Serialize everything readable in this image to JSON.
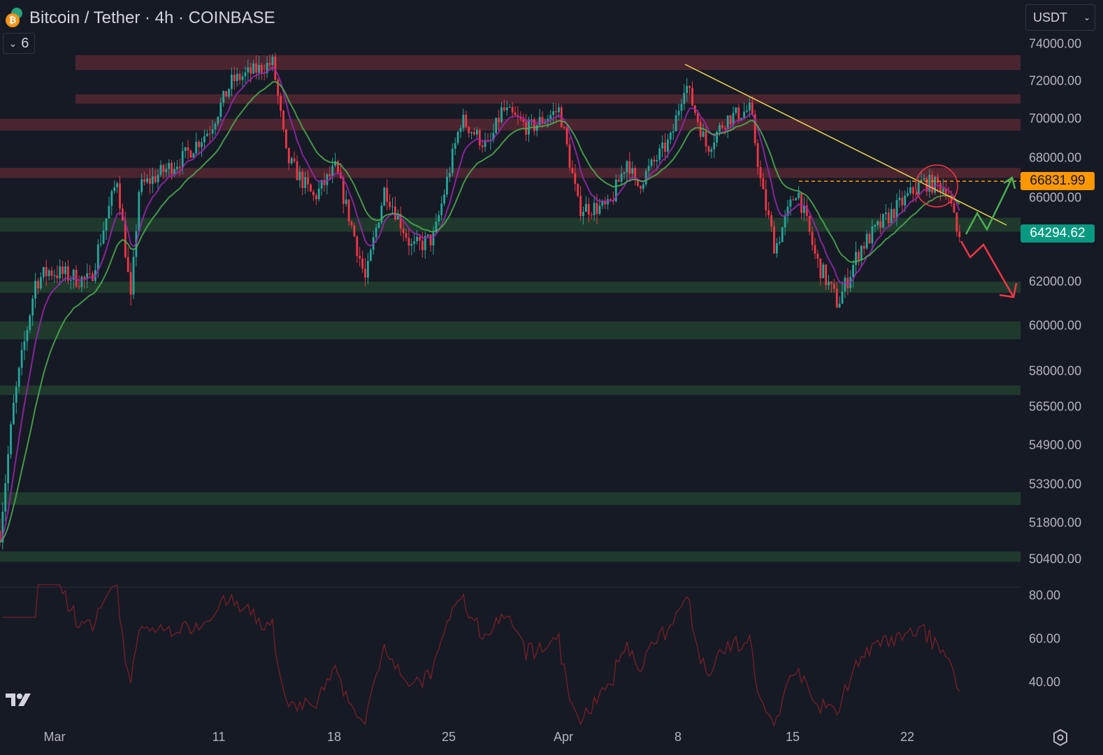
{
  "header": {
    "title": "Bitcoin / Tether · 4h · COINBASE",
    "indicators_toggle_count": "6",
    "currency_select": "USDT"
  },
  "colors": {
    "background": "#161a25",
    "up": "#26a69a",
    "down": "#f23645",
    "resistance_zone": "#4a2530",
    "support_zone": "#1f3a2c",
    "trendline": "#e8d44d",
    "last_price_tag": "#089981",
    "level_tag": "#ff9800",
    "rsi_line": "#7a1f24"
  },
  "price_axis": {
    "labels": [
      "74000.00",
      "72000.00",
      "70000.00",
      "68000.00",
      "66000.00",
      "62000.00",
      "60000.00",
      "58000.00",
      "56500.00",
      "54900.00",
      "53300.00",
      "51800.00",
      "50400.00"
    ],
    "level_tag": "66831.99",
    "last_price_tag": "64294.62"
  },
  "rsi_axis": {
    "labels": [
      "80.00",
      "60.00",
      "40.00"
    ]
  },
  "time_axis": {
    "labels": [
      "Mar",
      "11",
      "18",
      "25",
      "Apr",
      "8",
      "15",
      "22"
    ]
  },
  "chart_data": {
    "type": "candlestick",
    "approx_close_path": [
      [
        "02-26 16",
        51500
      ],
      [
        "02-27 12",
        56500
      ],
      [
        "02-28 20",
        62000
      ],
      [
        "02-29 16",
        62500
      ],
      [
        "03-03 04",
        62000
      ],
      [
        "03-04 20",
        67000
      ],
      [
        "03-05 16",
        61000
      ],
      [
        "03-06 04",
        66500
      ],
      [
        "03-08 20",
        68000
      ],
      [
        "03-10 12",
        69500
      ],
      [
        "03-11 20",
        72000
      ],
      [
        "03-14 08",
        73000
      ],
      [
        "03-15 04",
        68000
      ],
      [
        "03-16 20",
        66000
      ],
      [
        "03-18 04",
        67500
      ],
      [
        "03-20 00",
        62000
      ],
      [
        "03-21 04",
        66500
      ],
      [
        "03-22 20",
        63500
      ],
      [
        "03-24 04",
        64000
      ],
      [
        "03-25 20",
        70000
      ],
      [
        "03-27 12",
        68500
      ],
      [
        "03-28 08",
        70500
      ],
      [
        "03-30 00",
        69500
      ],
      [
        "03-31 20",
        70500
      ],
      [
        "04-02 00",
        65500
      ],
      [
        "04-03 20",
        65500
      ],
      [
        "04-05 00",
        68000
      ],
      [
        "04-05 12",
        66500
      ],
      [
        "04-07 16",
        69000
      ],
      [
        "04-08 12",
        72000
      ],
      [
        "04-09 20",
        68500
      ],
      [
        "04-11 00",
        70000
      ],
      [
        "04-12 12",
        70500
      ],
      [
        "04-13 04",
        66500
      ],
      [
        "04-14 00",
        63500
      ],
      [
        "04-15 08",
        66500
      ],
      [
        "04-16 12",
        63000
      ],
      [
        "04-17 20",
        61000
      ],
      [
        "04-19 04",
        63500
      ],
      [
        "04-20 20",
        65000
      ],
      [
        "04-23 00",
        66800
      ],
      [
        "04-24 12",
        66500
      ],
      [
        "04-25 04",
        64000
      ],
      [
        "04-25 08",
        64294.62
      ]
    ],
    "resistance_zones": [
      [
        72600,
        73400
      ],
      [
        70800,
        71300
      ],
      [
        69400,
        70000
      ],
      [
        67000,
        67500
      ]
    ],
    "support_zones": [
      [
        64300,
        65000
      ],
      [
        61500,
        62000
      ],
      [
        59400,
        60200
      ],
      [
        57000,
        57400
      ],
      [
        52500,
        53000
      ],
      [
        50300,
        50700
      ]
    ],
    "horizontal_level": 66831.99,
    "rsi_range": [
      20,
      80
    ]
  }
}
